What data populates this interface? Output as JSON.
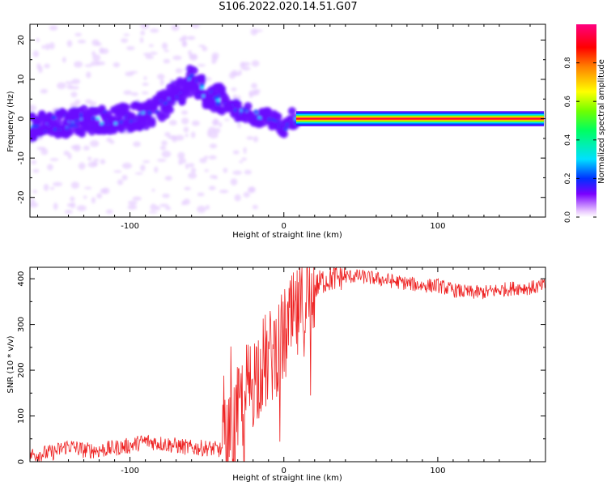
{
  "title": "S106.2022.020.14.51.G07",
  "chart_data": [
    {
      "type": "heatmap",
      "xlabel": "Height of straight line (km)",
      "ylabel": "Frequency (Hz)",
      "xlim": [
        -165,
        170
      ],
      "ylim": [
        -25,
        24
      ],
      "xticks": [
        -100,
        0,
        100
      ],
      "yticks": [
        -20,
        -10,
        0,
        10,
        20
      ],
      "xtick_labels": [
        "-100",
        "0",
        "100"
      ],
      "ytick_labels": [
        "-20",
        "-10",
        "0",
        "10",
        "20"
      ],
      "grid": false,
      "colormap": "rainbow",
      "colorbar": {
        "label": "Normalized spectral amplitude",
        "range": [
          0,
          1
        ],
        "ticks": [
          0.0,
          0.2,
          0.4,
          0.6,
          0.8
        ],
        "tick_labels": [
          "0.0",
          "0.2",
          "0.4",
          "0.6",
          "0.8"
        ],
        "colors": [
          "#e9c8ff",
          "#7a00ff",
          "#0030ff",
          "#00e0ff",
          "#00ff60",
          "#70ff00",
          "#ffff00",
          "#ff8000",
          "#ff0000",
          "#ff0080"
        ]
      },
      "ridge": {
        "description_points_x": [
          -160,
          -140,
          -120,
          -100,
          -90,
          -80,
          -70,
          -60,
          -50,
          -40,
          -30,
          -20,
          -10,
          -5,
          0,
          5,
          10,
          50,
          100,
          150,
          170
        ],
        "frequency_y": [
          -2,
          -1,
          0,
          0,
          1,
          3,
          6,
          10,
          6,
          5,
          2,
          1,
          0,
          -1,
          -2,
          0,
          0,
          0,
          0,
          0,
          0
        ]
      }
    },
    {
      "type": "line",
      "xlabel": "Height of straight line (km)",
      "ylabel": "SNR (10 * v/v)",
      "xlim": [
        -165,
        170
      ],
      "ylim": [
        0,
        425
      ],
      "xticks": [
        -100,
        0,
        100
      ],
      "yticks": [
        0,
        100,
        200,
        300,
        400
      ],
      "xtick_labels": [
        "-100",
        "0",
        "100"
      ],
      "ytick_labels": [
        "0",
        "100",
        "200",
        "300",
        "400"
      ],
      "grid": false,
      "series_color": "#ee2222",
      "x": [
        -165,
        -150,
        -140,
        -130,
        -120,
        -110,
        -100,
        -90,
        -80,
        -70,
        -60,
        -50,
        -40,
        -35,
        -30,
        -25,
        -20,
        -15,
        -10,
        -5,
        0,
        5,
        10,
        15,
        20,
        25,
        30,
        40,
        50,
        60,
        70,
        80,
        90,
        100,
        110,
        120,
        130,
        140,
        150,
        160,
        170
      ],
      "y": [
        15,
        20,
        35,
        25,
        25,
        30,
        35,
        45,
        40,
        35,
        30,
        30,
        25,
        40,
        100,
        150,
        180,
        210,
        220,
        250,
        270,
        300,
        320,
        350,
        380,
        395,
        400,
        405,
        405,
        400,
        395,
        390,
        385,
        385,
        375,
        370,
        370,
        375,
        380,
        380,
        385
      ]
    }
  ]
}
